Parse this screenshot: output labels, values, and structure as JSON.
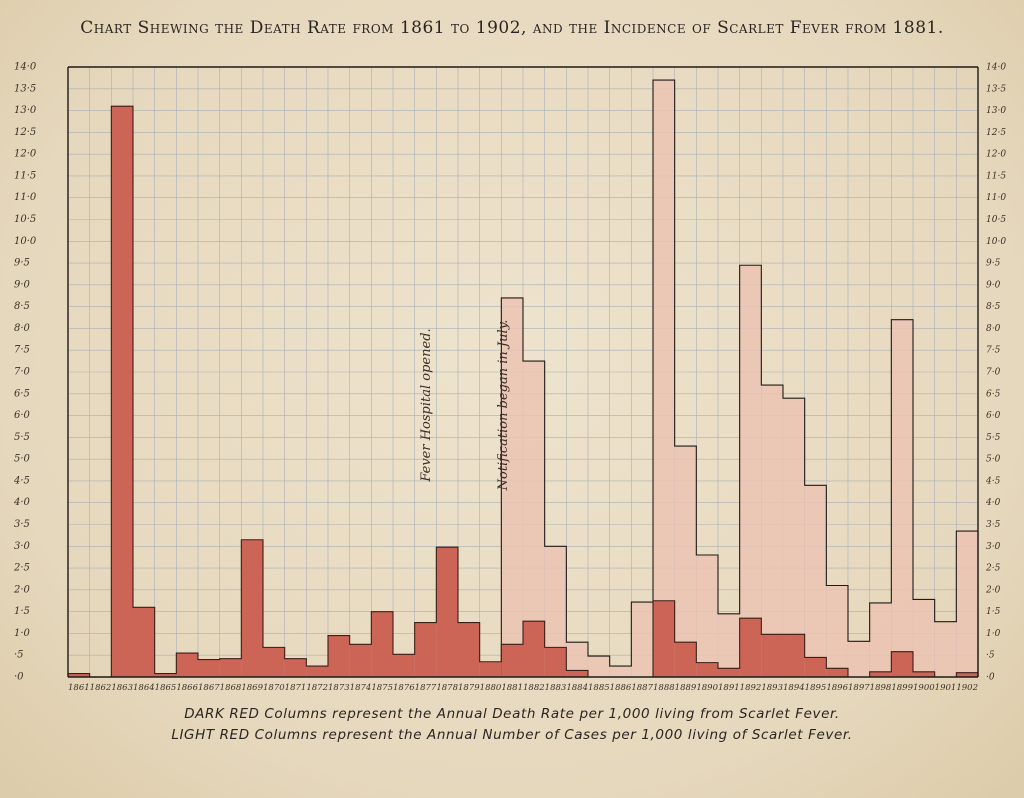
{
  "title": "Chart Shewing the Death Rate from 1861 to 1902, and the Incidence of Scarlet Fever from 1881.",
  "legend": {
    "dark": "DARK RED Columns represent the Annual Death Rate per 1,000 living from Scarlet Fever.",
    "light": "LIGHT RED Columns represent the Annual Number of Cases per 1,000 living of Scarlet Fever."
  },
  "colors": {
    "dark": "#cd6557",
    "light": "#ebc3b3",
    "grid": "#a9b0b6",
    "axis": "#1e1a18"
  },
  "chart_data": {
    "type": "bar",
    "categories": [
      "1861",
      "1862",
      "1863",
      "1864",
      "1865",
      "1866",
      "1867",
      "1868",
      "1869",
      "1870",
      "1871",
      "1872",
      "1873",
      "1874",
      "1875",
      "1876",
      "1877",
      "1878",
      "1879",
      "1880",
      "1881",
      "1882",
      "1883",
      "1884",
      "1885",
      "1886",
      "1887",
      "1888",
      "1889",
      "1890",
      "1891",
      "1892",
      "1893",
      "1894",
      "1895",
      "1896",
      "1897",
      "1898",
      "1899",
      "1900",
      "1901",
      "1902"
    ],
    "tick_labels": [
      "1861",
      "1862",
      "1863",
      "1864",
      "1865",
      "1866",
      "1867",
      "1868",
      "1869",
      "1870",
      "1871",
      "1872",
      "1873",
      "1874",
      "1875",
      "1876",
      "1877",
      "1878",
      "1879",
      "1880",
      "1881",
      "1882",
      "1883",
      "1884",
      "1885",
      "1886",
      "1887",
      "1888",
      "1889",
      "1890",
      "1891",
      "1892",
      "1893",
      "1894",
      "1895",
      "1896",
      "1897",
      "1898",
      "1899",
      "1900",
      "1901",
      "1902"
    ],
    "series": [
      {
        "name": "DARK RED Columns: Annual Death Rate per 1,000 living from Scarlet Fever",
        "values": [
          0.08,
          0,
          13.1,
          1.6,
          0.08,
          0.55,
          0.4,
          0.42,
          3.15,
          0.68,
          0.42,
          0.25,
          0.95,
          0.75,
          1.5,
          0.52,
          1.25,
          2.98,
          1.25,
          0.35,
          0.75,
          1.28,
          0.68,
          0.15,
          0.0,
          0.0,
          0.0,
          1.75,
          0.8,
          0.33,
          0.2,
          1.35,
          0.98,
          0.98,
          0.45,
          0.2,
          0.0,
          0.12,
          0.58,
          0.12,
          0.0,
          0.1
        ]
      },
      {
        "name": "LIGHT RED Columns: Annual Number of Cases per 1,000 living of Scarlet Fever",
        "values": [
          null,
          null,
          null,
          null,
          null,
          null,
          null,
          null,
          null,
          null,
          null,
          null,
          null,
          null,
          null,
          null,
          null,
          null,
          null,
          null,
          8.7,
          7.25,
          3.0,
          0.8,
          0.48,
          0.25,
          1.72,
          13.7,
          5.3,
          2.8,
          1.45,
          9.45,
          6.7,
          6.4,
          4.4,
          2.1,
          0.82,
          1.7,
          8.2,
          1.78,
          1.27,
          3.35
        ]
      }
    ],
    "ylim": [
      0,
      14
    ],
    "yticks": [
      "·0",
      "·5",
      "1·0",
      "1·5",
      "2·0",
      "2·5",
      "3·0",
      "3·5",
      "4·0",
      "4·5",
      "5·0",
      "5·5",
      "6·0",
      "6·5",
      "7·0",
      "7·5",
      "8·0",
      "8·5",
      "9·0",
      "9·5",
      "10·0",
      "10·5",
      "11·0",
      "11·5",
      "12·0",
      "12·5",
      "13·0",
      "13·5",
      "14·0"
    ],
    "grid": true,
    "annotations": [
      {
        "text": "Fever Hospital opened.",
        "year": "1877"
      },
      {
        "text": "Notification began in July.",
        "year": "1881"
      }
    ]
  }
}
